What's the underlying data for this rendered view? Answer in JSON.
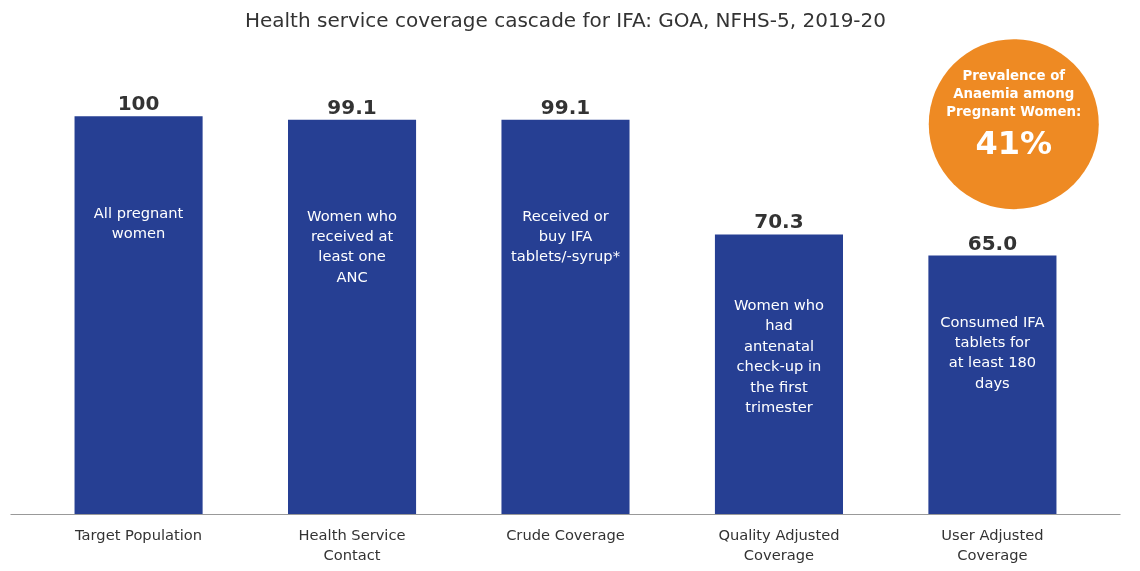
{
  "chart_data": {
    "type": "bar",
    "title": "Health service coverage cascade for IFA: GOA, NFHS-5, 2019-20",
    "categories": [
      "Target Population",
      "Health Service Contact",
      "Crude Coverage",
      "Quality Adjusted Coverage",
      "User Adjusted Coverage"
    ],
    "values": [
      100,
      99.1,
      99.1,
      70.3,
      65.0
    ],
    "value_labels": [
      "100",
      "99.1",
      "99.1",
      "70.3",
      "65.0"
    ],
    "color": "#263f93",
    "annotations": [
      "All pregnant women",
      "Women who received at least one ANC",
      "Received or buy IFA tablets/-syrup*",
      "Women who had antenatal check-up in the first trimester",
      "Consumed IFA tablets for at least 180 days",
      "Prevalence of Anaemia among Pregnant Women: 41%"
    ]
  }
}
